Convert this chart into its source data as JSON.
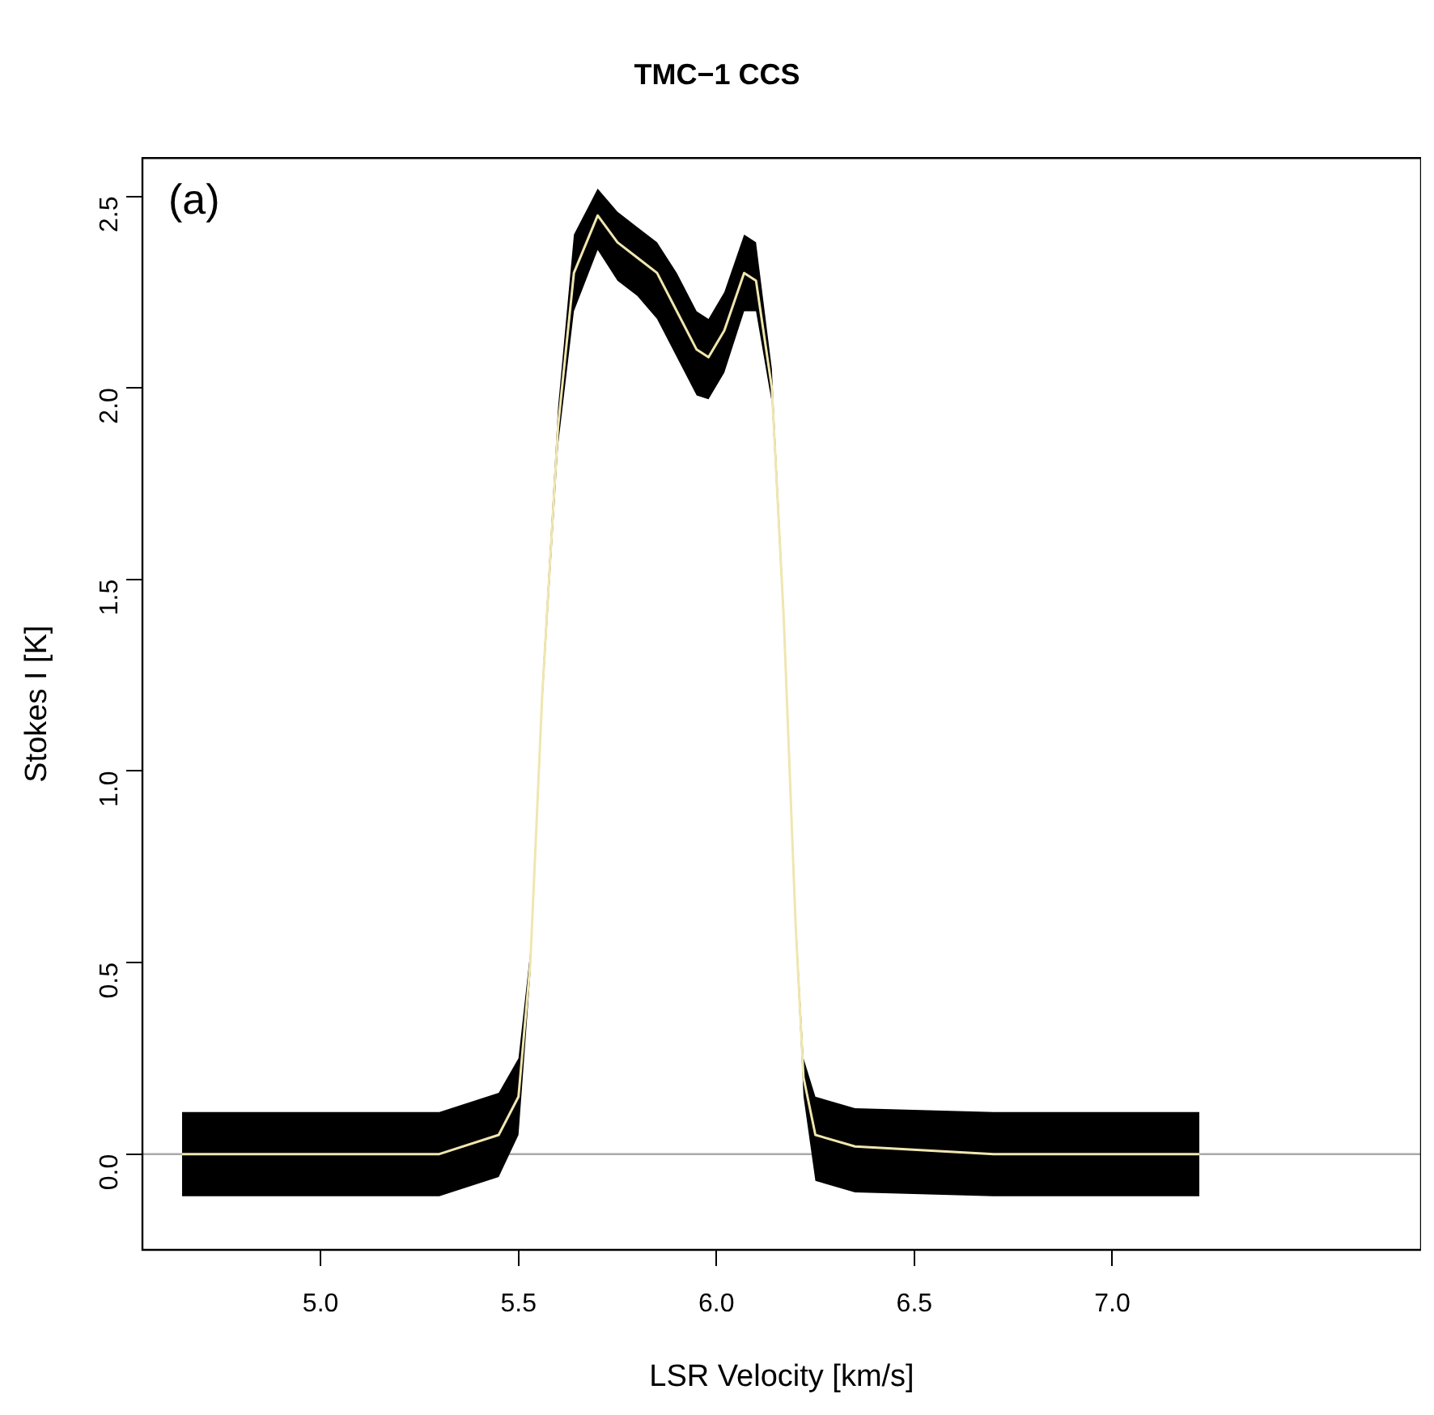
{
  "chart_data": {
    "type": "line",
    "title": "TMC−1 CCS",
    "xlabel": "LSR Velocity [km/s]",
    "ylabel": "Stokes I [K]",
    "annotations": [
      "(a)"
    ],
    "x": [
      4.65,
      5.0,
      5.3,
      5.45,
      5.5,
      5.53,
      5.56,
      5.6,
      5.64,
      5.7,
      5.75,
      5.8,
      5.85,
      5.9,
      5.95,
      5.98,
      6.02,
      6.07,
      6.1,
      6.14,
      6.17,
      6.2,
      6.22,
      6.25,
      6.35,
      6.7,
      7.22
    ],
    "series": [
      {
        "color": "#f0e6b0",
        "values": [
          0,
          0,
          0,
          0.05,
          0.15,
          0.5,
          1.2,
          1.9,
          2.3,
          2.45,
          2.38,
          2.34,
          2.3,
          2.2,
          2.1,
          2.08,
          2.15,
          2.3,
          2.28,
          2.0,
          1.4,
          0.6,
          0.2,
          0.05,
          0.02,
          0,
          0
        ],
        "lower": [
          -0.11,
          -0.11,
          -0.11,
          -0.06,
          0.05,
          0.47,
          1.17,
          1.85,
          2.2,
          2.36,
          2.28,
          2.24,
          2.18,
          2.08,
          1.98,
          1.97,
          2.04,
          2.2,
          2.2,
          1.96,
          1.37,
          0.57,
          0.15,
          -0.07,
          -0.1,
          -0.11,
          -0.11
        ],
        "upper": [
          0.11,
          0.11,
          0.11,
          0.16,
          0.25,
          0.53,
          1.23,
          1.95,
          2.4,
          2.52,
          2.46,
          2.42,
          2.38,
          2.3,
          2.2,
          2.18,
          2.25,
          2.4,
          2.38,
          2.05,
          1.43,
          0.63,
          0.25,
          0.15,
          0.12,
          0.11,
          0.11
        ]
      }
    ],
    "xlim": [
      4.55,
      7.78
    ],
    "xticks": [
      {
        "value": 5,
        "label": "5.0"
      },
      {
        "value": 5.5,
        "label": "5.5"
      },
      {
        "value": 6,
        "label": "6.0"
      },
      {
        "value": 6.5,
        "label": "6.5"
      },
      {
        "value": 7,
        "label": "7.0"
      }
    ],
    "ylim": [
      -0.25,
      2.6
    ],
    "yticks": [
      {
        "value": 0,
        "label": "0.0"
      },
      {
        "value": 0.5,
        "label": "0.5"
      },
      {
        "value": 1,
        "label": "1.0"
      },
      {
        "value": 1.5,
        "label": "1.5"
      },
      {
        "value": 2,
        "label": "2.0"
      },
      {
        "value": 2.5,
        "label": "2.5"
      }
    ],
    "ref_lines": [
      {
        "axis": "y",
        "value": 0,
        "color": "#aaaaaa"
      }
    ],
    "grid": false,
    "legend": false,
    "marker": "none",
    "line_style": "solid"
  }
}
